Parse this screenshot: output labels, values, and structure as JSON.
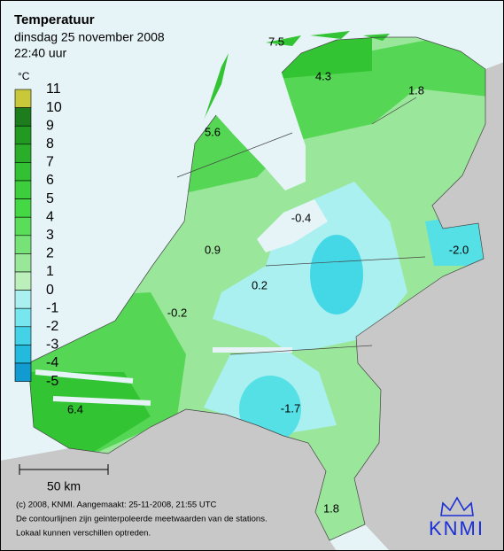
{
  "header": {
    "title": "Temperatuur",
    "date": "dinsdag 25 november 2008",
    "time": "22:40 uur"
  },
  "legend": {
    "unit": "°C",
    "labels": [
      "11",
      "10",
      "9",
      "8",
      "7",
      "6",
      "5",
      "4",
      "3",
      "2",
      "1",
      "0",
      "-1",
      "-2",
      "-3",
      "-4",
      "-5"
    ]
  },
  "stations": [
    "7.5",
    "4.3",
    "1.8",
    "5.6",
    "-0.4",
    "-2.0",
    "0.9",
    "0.2",
    "-0.2",
    "-1.7",
    "6.4",
    "1.8"
  ],
  "scale": "50 km",
  "footer": [
    "(c) 2008, KNMI. Aangemaakt: 25-11-2008, 21:55 UTC",
    "De contourlijnen zijn geinterpoleerde meetwaarden van de stations.",
    "Lokaal kunnen verschillen optreden."
  ],
  "logo": "KNMI"
}
